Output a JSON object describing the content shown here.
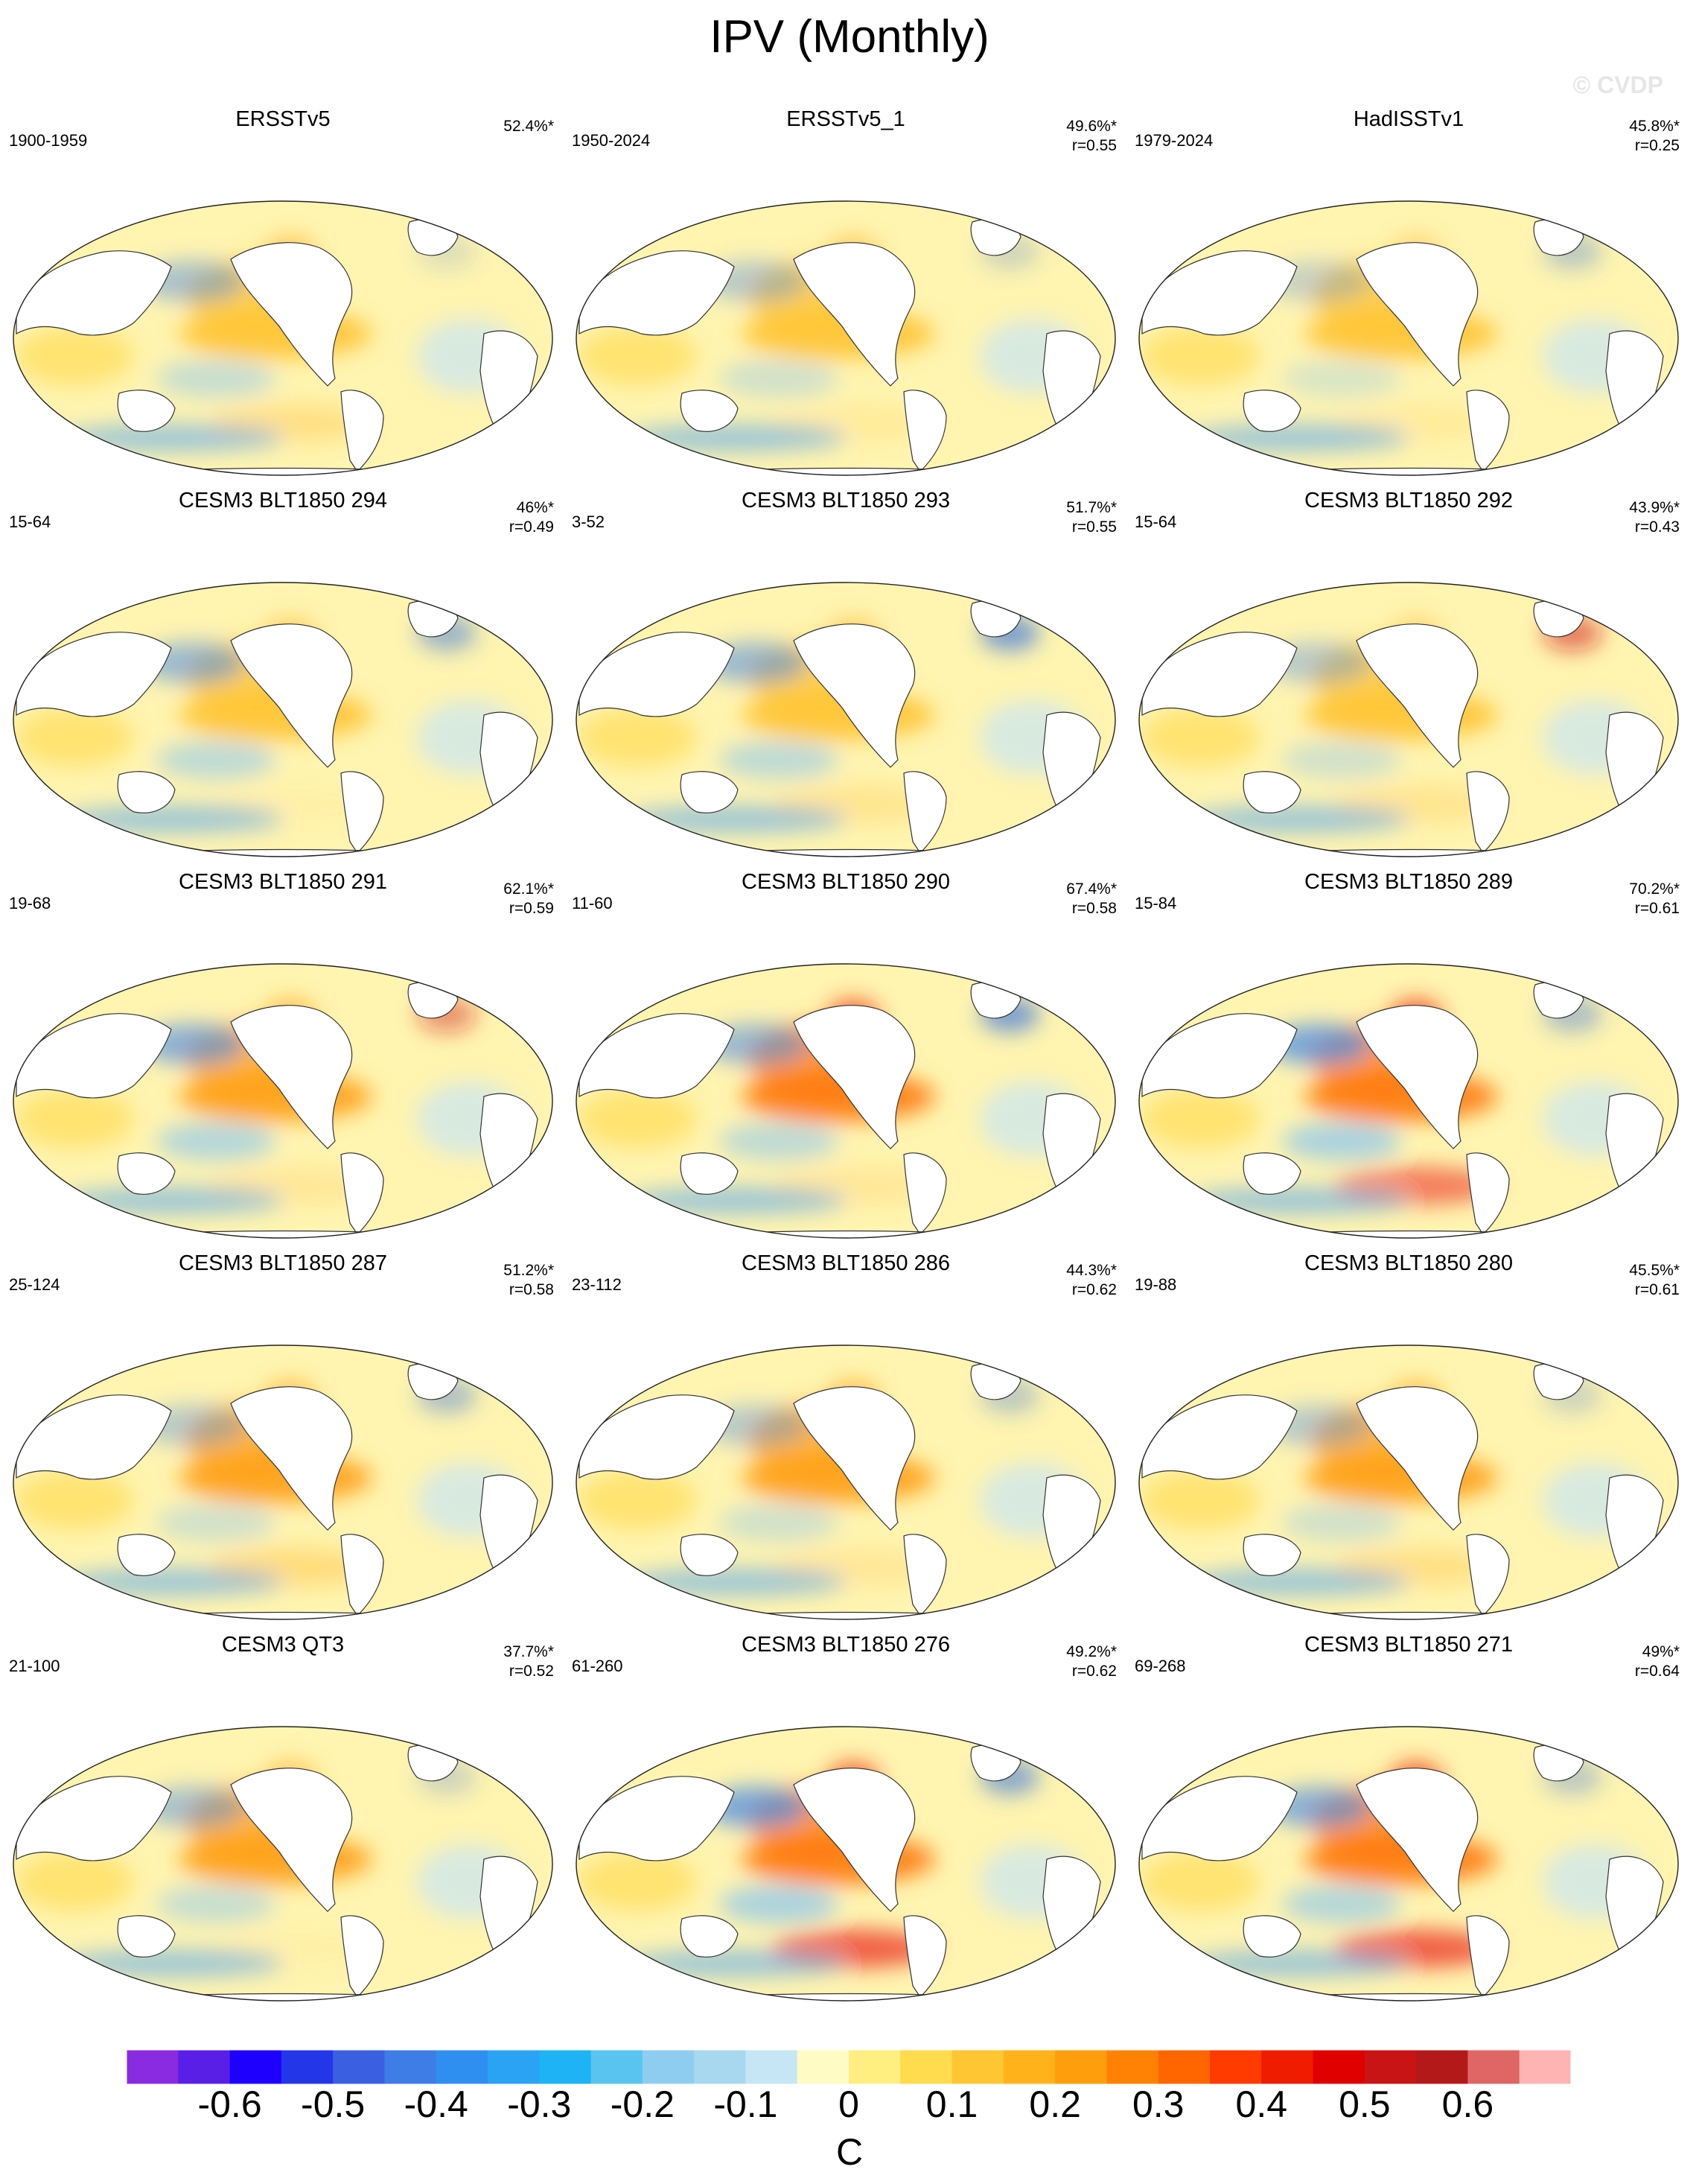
{
  "title": "IPV (Monthly)",
  "copyright": "© CVDP",
  "panels": [
    {
      "title": "ERSSTv5",
      "period": "1900-1959",
      "pct": "52.4%*",
      "r": "",
      "strength": 0.7,
      "west_cool": 0.6,
      "south": 0.5,
      "na_cool": 0.2
    },
    {
      "title": "ERSSTv5_1",
      "period": "1950-2024",
      "pct": "49.6%*",
      "r": "r=0.55",
      "strength": 0.65,
      "west_cool": 0.5,
      "south": 0.2,
      "na_cool": 0.3
    },
    {
      "title": "HadISSTv1",
      "period": "1979-2024",
      "pct": "45.8%*",
      "r": "r=0.25",
      "strength": 0.5,
      "west_cool": 0.4,
      "south": 0.2,
      "na_cool": 0.4
    },
    {
      "title": "CESM3 BLT1850 294",
      "period": "15-64",
      "pct": "46%*",
      "r": "r=0.49",
      "strength": 0.6,
      "west_cool": 0.7,
      "south": 0.1,
      "na_cool": 0.6
    },
    {
      "title": "CESM3 BLT1850 293",
      "period": "3-52",
      "pct": "51.7%*",
      "r": "r=0.55",
      "strength": 0.6,
      "west_cool": 0.7,
      "south": 0.4,
      "na_cool": 0.8
    },
    {
      "title": "CESM3 BLT1850 292",
      "period": "15-64",
      "pct": "43.9%*",
      "r": "r=0.43",
      "strength": 0.5,
      "west_cool": 0.5,
      "south": 0.4,
      "na_cool": -0.6
    },
    {
      "title": "CESM3 BLT1850 291",
      "period": "19-68",
      "pct": "62.1%*",
      "r": "r=0.59",
      "strength": 0.85,
      "west_cool": 0.8,
      "south": 0.3,
      "na_cool": -0.5
    },
    {
      "title": "CESM3 BLT1850 290",
      "period": "11-60",
      "pct": "67.4%*",
      "r": "r=0.58",
      "strength": 0.95,
      "west_cool": 0.7,
      "south": 0.3,
      "na_cool": 0.8
    },
    {
      "title": "CESM3 BLT1850 289",
      "period": "15-84",
      "pct": "70.2%*",
      "r": "r=0.61",
      "strength": 1.0,
      "west_cool": 0.9,
      "south": 0.8,
      "na_cool": 0.5
    },
    {
      "title": "CESM3 BLT1850 287",
      "period": "25-124",
      "pct": "51.2%*",
      "r": "r=0.58",
      "strength": 0.8,
      "west_cool": 0.5,
      "south": 0.6,
      "na_cool": 0.5
    },
    {
      "title": "CESM3 BLT1850 286",
      "period": "23-112",
      "pct": "44.3%*",
      "r": "r=0.62",
      "strength": 0.85,
      "west_cool": 0.5,
      "south": 0.3,
      "na_cool": 0.4
    },
    {
      "title": "CESM3 BLT1850 280",
      "period": "19-88",
      "pct": "45.5%*",
      "r": "r=0.61",
      "strength": 0.8,
      "west_cool": 0.5,
      "south": 0.5,
      "na_cool": 0.3
    },
    {
      "title": "CESM3 QT3",
      "period": "21-100",
      "pct": "37.7%*",
      "r": "r=0.52",
      "strength": 0.75,
      "west_cool": 0.6,
      "south": 0.1,
      "na_cool": 0.3
    },
    {
      "title": "CESM3 BLT1850 276",
      "period": "61-260",
      "pct": "49.2%*",
      "r": "r=0.62",
      "strength": 0.95,
      "west_cool": 0.9,
      "south": 1.0,
      "na_cool": 0.7
    },
    {
      "title": "CESM3 BLT1850 271",
      "period": "69-268",
      "pct": "49%*",
      "r": "r=0.64",
      "strength": 1.0,
      "west_cool": 0.8,
      "south": 1.0,
      "na_cool": 0.4
    }
  ],
  "colorbar": {
    "colors": [
      "#8a2be2",
      "#5a1fe6",
      "#1d00ff",
      "#2336e8",
      "#3a5fe0",
      "#3f7de6",
      "#2f8ff0",
      "#2aa3f5",
      "#1db3f5",
      "#5ac4f0",
      "#8fcdf0",
      "#a8d8f0",
      "#c7e6f5",
      "#fffbc4",
      "#ffee80",
      "#ffdb4d",
      "#ffc633",
      "#ffb21a",
      "#ff9e0d",
      "#ff8205",
      "#ff6600",
      "#ff3b00",
      "#f01c00",
      "#e00000",
      "#c81414",
      "#b41919",
      "#e06666",
      "#ffb4b4"
    ],
    "ticks": [
      "-0.6",
      "-0.5",
      "-0.4",
      "-0.3",
      "-0.2",
      "-0.1",
      "0",
      "0.1",
      "0.2",
      "0.3",
      "0.4",
      "0.5",
      "0.6"
    ],
    "tick_values": [
      -0.6,
      -0.5,
      -0.4,
      -0.3,
      -0.2,
      -0.1,
      0,
      0.1,
      0.2,
      0.3,
      0.4,
      0.5,
      0.6
    ],
    "range": [
      -0.7,
      0.7
    ],
    "unit": "C"
  }
}
